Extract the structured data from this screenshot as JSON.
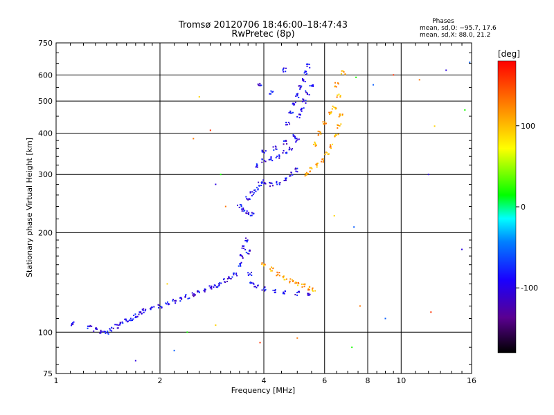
{
  "chart_data": {
    "type": "scatter",
    "title": "Tromsø 20120706 18:46:00–18:47:43",
    "subtitle": "RwPretec (8p)",
    "xlabel": "Frequency [MHz]",
    "ylabel": "Stationary phase Virtual Height [km]",
    "x_scale": "log",
    "y_scale": "log",
    "xlim": [
      1,
      16
    ],
    "ylim": [
      75,
      750
    ],
    "x_ticks": [
      1,
      2,
      4,
      6,
      8,
      10,
      16
    ],
    "y_ticks": [
      75,
      100,
      200,
      300,
      400,
      500,
      600,
      750
    ],
    "grid": true,
    "phases": {
      "title": "Phases",
      "line_o": "mean, sd,O: −95.7, 17.6",
      "line_x": "mean, sd,X:  88.0, 21.2"
    },
    "colorbar": {
      "label": "[deg]",
      "ticks": [
        100,
        0,
        -100
      ],
      "range": [
        -180,
        180
      ]
    },
    "series": [
      {
        "mode": "O",
        "phase": -100,
        "points": [
          [
            1.12,
            106
          ],
          [
            1.25,
            104
          ],
          [
            1.3,
            102
          ],
          [
            1.35,
            100
          ],
          [
            1.4,
            100
          ],
          [
            1.45,
            102
          ],
          [
            1.5,
            104
          ],
          [
            1.55,
            106
          ],
          [
            1.6,
            108
          ],
          [
            1.65,
            110
          ],
          [
            1.7,
            112
          ],
          [
            1.75,
            114
          ],
          [
            1.8,
            116
          ],
          [
            1.9,
            118
          ],
          [
            2.0,
            120
          ],
          [
            2.1,
            122
          ],
          [
            2.2,
            124
          ],
          [
            2.3,
            126
          ],
          [
            2.4,
            128
          ],
          [
            2.5,
            130
          ],
          [
            2.6,
            132
          ],
          [
            2.7,
            134
          ],
          [
            2.8,
            136
          ],
          [
            2.9,
            138
          ],
          [
            3.0,
            140
          ],
          [
            3.1,
            143
          ],
          [
            3.2,
            146
          ],
          [
            3.3,
            150
          ],
          [
            3.4,
            160
          ],
          [
            3.45,
            170
          ],
          [
            3.5,
            180
          ],
          [
            3.55,
            190
          ],
          [
            3.6,
            175
          ],
          [
            3.65,
            150
          ],
          [
            3.7,
            140
          ],
          [
            3.8,
            137
          ],
          [
            4.0,
            135
          ],
          [
            4.3,
            133
          ],
          [
            4.6,
            132
          ],
          [
            5.0,
            131
          ],
          [
            5.4,
            130
          ],
          [
            3.4,
            240
          ],
          [
            3.5,
            235
          ],
          [
            3.6,
            230
          ],
          [
            3.7,
            228
          ],
          [
            3.6,
            255
          ],
          [
            3.7,
            262
          ],
          [
            3.8,
            270
          ],
          [
            3.9,
            280
          ],
          [
            4.0,
            285
          ],
          [
            4.2,
            280
          ],
          [
            4.4,
            283
          ],
          [
            4.6,
            290
          ],
          [
            4.8,
            300
          ],
          [
            5.0,
            310
          ],
          [
            3.8,
            320
          ],
          [
            4.0,
            330
          ],
          [
            4.2,
            335
          ],
          [
            4.4,
            340
          ],
          [
            4.6,
            350
          ],
          [
            4.8,
            360
          ],
          [
            5.0,
            380
          ],
          [
            4.0,
            350
          ],
          [
            4.3,
            360
          ],
          [
            4.6,
            375
          ],
          [
            4.9,
            390
          ],
          [
            4.7,
            430
          ],
          [
            4.8,
            460
          ],
          [
            4.9,
            490
          ],
          [
            5.0,
            520
          ],
          [
            5.1,
            550
          ],
          [
            5.2,
            580
          ],
          [
            5.3,
            610
          ],
          [
            5.4,
            640
          ],
          [
            5.05,
            450
          ],
          [
            5.15,
            470
          ],
          [
            5.25,
            500
          ],
          [
            5.35,
            530
          ],
          [
            5.5,
            560
          ],
          [
            4.6,
            620
          ],
          [
            4.2,
            530
          ],
          [
            3.9,
            560
          ]
        ]
      },
      {
        "mode": "X",
        "phase": 110,
        "points": [
          [
            4.0,
            160
          ],
          [
            4.2,
            155
          ],
          [
            4.4,
            150
          ],
          [
            4.6,
            146
          ],
          [
            4.8,
            143
          ],
          [
            5.0,
            140
          ],
          [
            5.2,
            138
          ],
          [
            5.4,
            136
          ],
          [
            5.6,
            134
          ],
          [
            5.3,
            300
          ],
          [
            5.5,
            310
          ],
          [
            5.7,
            320
          ],
          [
            5.9,
            330
          ],
          [
            6.1,
            345
          ],
          [
            6.3,
            365
          ],
          [
            6.5,
            395
          ],
          [
            6.6,
            420
          ],
          [
            6.7,
            450
          ],
          [
            5.6,
            370
          ],
          [
            5.8,
            400
          ],
          [
            6.0,
            430
          ],
          [
            6.2,
            460
          ],
          [
            6.4,
            480
          ],
          [
            6.6,
            520
          ],
          [
            6.5,
            560
          ],
          [
            6.8,
            610
          ]
        ]
      }
    ],
    "outliers": [
      [
        13.5,
        620
      ],
      [
        15.8,
        655
      ],
      [
        15.3,
        470
      ],
      [
        12.5,
        420
      ],
      [
        11.3,
        580
      ],
      [
        9.5,
        600
      ],
      [
        12.0,
        300
      ],
      [
        8.3,
        560
      ],
      [
        7.4,
        590
      ],
      [
        2.6,
        515
      ],
      [
        2.5,
        385
      ],
      [
        2.8,
        408
      ],
      [
        2.9,
        280
      ],
      [
        7.3,
        208
      ],
      [
        7.2,
        90
      ],
      [
        6.4,
        225
      ],
      [
        5.0,
        96
      ],
      [
        3.9,
        93
      ],
      [
        1.7,
        82
      ],
      [
        2.2,
        88
      ],
      [
        2.4,
        100
      ],
      [
        2.9,
        105
      ],
      [
        7.6,
        120
      ],
      [
        12.2,
        115
      ],
      [
        15.0,
        178
      ],
      [
        9.0,
        110
      ],
      [
        3.0,
        300
      ],
      [
        2.1,
        140
      ],
      [
        3.1,
        240
      ]
    ]
  }
}
